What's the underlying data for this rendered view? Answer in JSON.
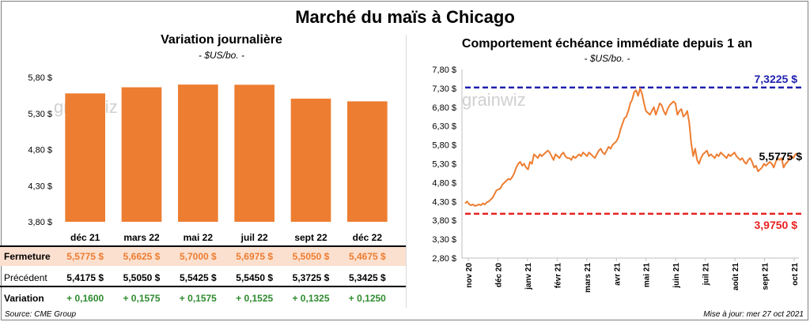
{
  "title": "Marché du maïs à Chicago",
  "left_panel": {
    "subtitle": "Variation journalière",
    "unit": "- $US/bo. -",
    "watermark": "grainwiz"
  },
  "right_panel": {
    "subtitle": "Comportement échéance immédiate depuis 1 an",
    "unit": "- $US/bo. -",
    "watermark": "grainwiz"
  },
  "table": {
    "row_labels": [
      "Fermeture",
      "Précédent",
      "Variation"
    ],
    "fermeture": [
      "5,5775 $",
      "5,6625 $",
      "5,7000 $",
      "5,6975 $",
      "5,5050 $",
      "5,4675 $"
    ],
    "precedent": [
      "5,4175 $",
      "5,5050 $",
      "5,5425 $",
      "5,5450 $",
      "5,3725 $",
      "5,3425 $"
    ],
    "variation": [
      "+ 0,1600",
      "+ 0,1575",
      "+ 0,1575",
      "+ 0,1525",
      "+ 0,1325",
      "+ 0,1250"
    ]
  },
  "source": "Source: CME Group",
  "updated": "Mise à jour: mer 27 oct 2021",
  "colors": {
    "bar": "#ed7d31",
    "line": "#ed7d31",
    "high_line": "#1f1fae",
    "low_line": "#e82020",
    "fermeture_row": "#fbe0cf",
    "variation_text": "#2e8b2e",
    "high_label": "#1f1fae",
    "low_label": "#e82020"
  },
  "chart_data": [
    {
      "type": "bar",
      "categories": [
        "déc 21",
        "mars 22",
        "mai 22",
        "juil 22",
        "sept 22",
        "déc 22"
      ],
      "values": [
        5.5775,
        5.6625,
        5.7,
        5.6975,
        5.505,
        5.4675
      ],
      "ylim": [
        3.8,
        5.8
      ],
      "yticks": [
        "3,80 $",
        "4,30 $",
        "4,80 $",
        "5,30 $",
        "5,80 $"
      ],
      "ytick_values": [
        3.8,
        4.3,
        4.8,
        5.3,
        5.8
      ]
    },
    {
      "type": "line",
      "ylim": [
        2.8,
        7.8
      ],
      "yticks": [
        "2,80 $",
        "3,30 $",
        "3,80 $",
        "4,30 $",
        "4,80 $",
        "5,30 $",
        "5,80 $",
        "6,30 $",
        "6,80 $",
        "7,30 $",
        "7,80 $"
      ],
      "ytick_values": [
        2.8,
        3.3,
        3.8,
        4.3,
        4.8,
        5.3,
        5.8,
        6.3,
        6.8,
        7.3,
        7.8
      ],
      "xticks": [
        "nov 20",
        "déc 20",
        "janv 21",
        "févr 21",
        "mars 21",
        "avr 21",
        "mai 21",
        "juin 21",
        "juil 21",
        "août 21",
        "sept 21",
        "oct 21"
      ],
      "high": 7.3225,
      "high_label": "7,3225 $",
      "low": 3.975,
      "low_label": "3,9750 $",
      "last_label": "5,5775 $",
      "values": [
        4.25,
        4.3,
        4.23,
        4.2,
        4.22,
        4.18,
        4.2,
        4.22,
        4.2,
        4.25,
        4.22,
        4.28,
        4.3,
        4.35,
        4.4,
        4.5,
        4.6,
        4.62,
        4.65,
        4.75,
        4.8,
        4.85,
        4.9,
        4.88,
        4.95,
        5.05,
        5.2,
        5.3,
        5.35,
        5.25,
        5.3,
        5.2,
        5.15,
        5.35,
        5.3,
        5.55,
        5.5,
        5.45,
        5.55,
        5.5,
        5.55,
        5.6,
        5.65,
        5.6,
        5.5,
        5.4,
        5.55,
        5.5,
        5.45,
        5.55,
        5.6,
        5.5,
        5.45,
        5.45,
        5.4,
        5.5,
        5.45,
        5.5,
        5.55,
        5.5,
        5.6,
        5.55,
        5.5,
        5.6,
        5.55,
        5.5,
        5.45,
        5.55,
        5.65,
        5.7,
        5.6,
        5.55,
        5.65,
        5.75,
        5.7,
        5.8,
        5.85,
        5.9,
        6.0,
        6.2,
        6.35,
        6.5,
        6.55,
        6.7,
        6.9,
        7.0,
        7.2,
        7.25,
        7.1,
        7.3,
        7.15,
        6.9,
        6.7,
        6.65,
        6.6,
        6.7,
        6.8,
        6.6,
        6.75,
        6.9,
        6.85,
        6.7,
        6.6,
        6.75,
        6.85,
        6.9,
        6.95,
        6.9,
        6.6,
        6.7,
        6.75,
        6.55,
        6.6,
        6.7,
        6.4,
        5.85,
        5.5,
        5.7,
        5.4,
        5.3,
        5.45,
        5.55,
        5.6,
        5.65,
        5.5,
        5.55,
        5.5,
        5.45,
        5.55,
        5.5,
        5.6,
        5.55,
        5.5,
        5.45,
        5.55,
        5.5,
        5.55,
        5.6,
        5.5,
        5.45,
        5.4,
        5.45,
        5.35,
        5.3,
        5.4,
        5.45,
        5.35,
        5.2,
        5.25,
        5.1,
        5.15,
        5.2,
        5.3,
        5.25,
        5.3,
        5.35,
        5.3,
        5.2,
        5.35,
        5.45,
        5.4,
        5.45,
        5.2,
        5.3,
        5.35,
        5.45,
        5.5,
        5.45,
        5.55,
        5.5775
      ]
    }
  ]
}
